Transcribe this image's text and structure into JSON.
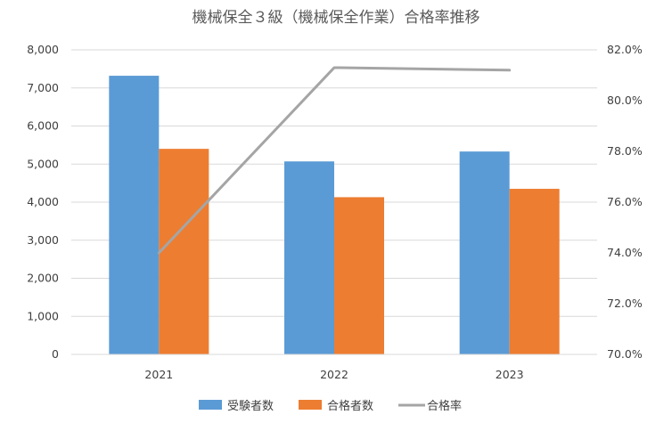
{
  "chart_data": {
    "type": "bar",
    "title": "機械保全３級（機械保全作業）合格率推移",
    "categories": [
      "2021",
      "2022",
      "2023"
    ],
    "series": [
      {
        "name": "受験者数",
        "type": "bar",
        "axis": "left",
        "color": "#5b9bd5",
        "values": [
          7320,
          5070,
          5330
        ]
      },
      {
        "name": "合格者数",
        "type": "bar",
        "axis": "left",
        "color": "#ed7d31",
        "values": [
          5400,
          4130,
          4350
        ]
      },
      {
        "name": "合格率",
        "type": "line",
        "axis": "right",
        "color": "#a5a5a5",
        "values": [
          74.0,
          81.3,
          81.2
        ]
      }
    ],
    "y_left": {
      "ylim": [
        0,
        8000
      ],
      "ticks": [
        "0",
        "1,000",
        "2,000",
        "3,000",
        "4,000",
        "5,000",
        "6,000",
        "7,000",
        "8,000"
      ]
    },
    "y_right": {
      "ylim": [
        70,
        82
      ],
      "ticks": [
        "70.0%",
        "72.0%",
        "74.0%",
        "76.0%",
        "78.0%",
        "80.0%",
        "82.0%"
      ]
    },
    "grid": true,
    "legend_position": "bottom"
  }
}
